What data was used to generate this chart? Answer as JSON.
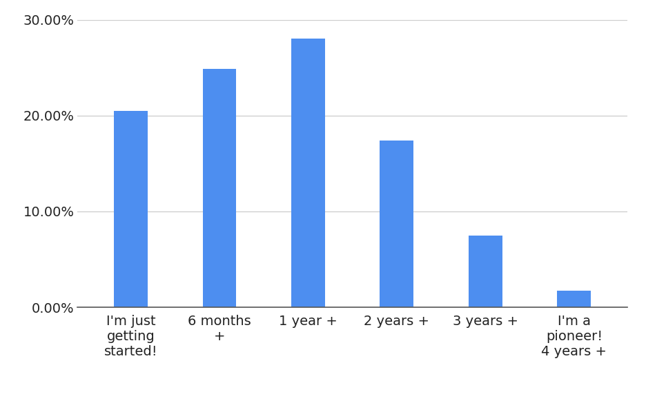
{
  "categories": [
    "I'm just\ngetting\nstarted!",
    "6 months\n+",
    "1 year +",
    "2 years +",
    "3 years +",
    "I'm a\npioneer!\n4 years +"
  ],
  "values": [
    20.5,
    24.9,
    28.0,
    17.4,
    7.5,
    1.7
  ],
  "bar_color": "#4d8ef0",
  "ylim": [
    0,
    30
  ],
  "yticks": [
    0,
    10,
    20,
    30
  ],
  "background_color": "#ffffff",
  "grid_color": "#cccccc",
  "tick_label_fontsize": 14,
  "bar_width": 0.38
}
